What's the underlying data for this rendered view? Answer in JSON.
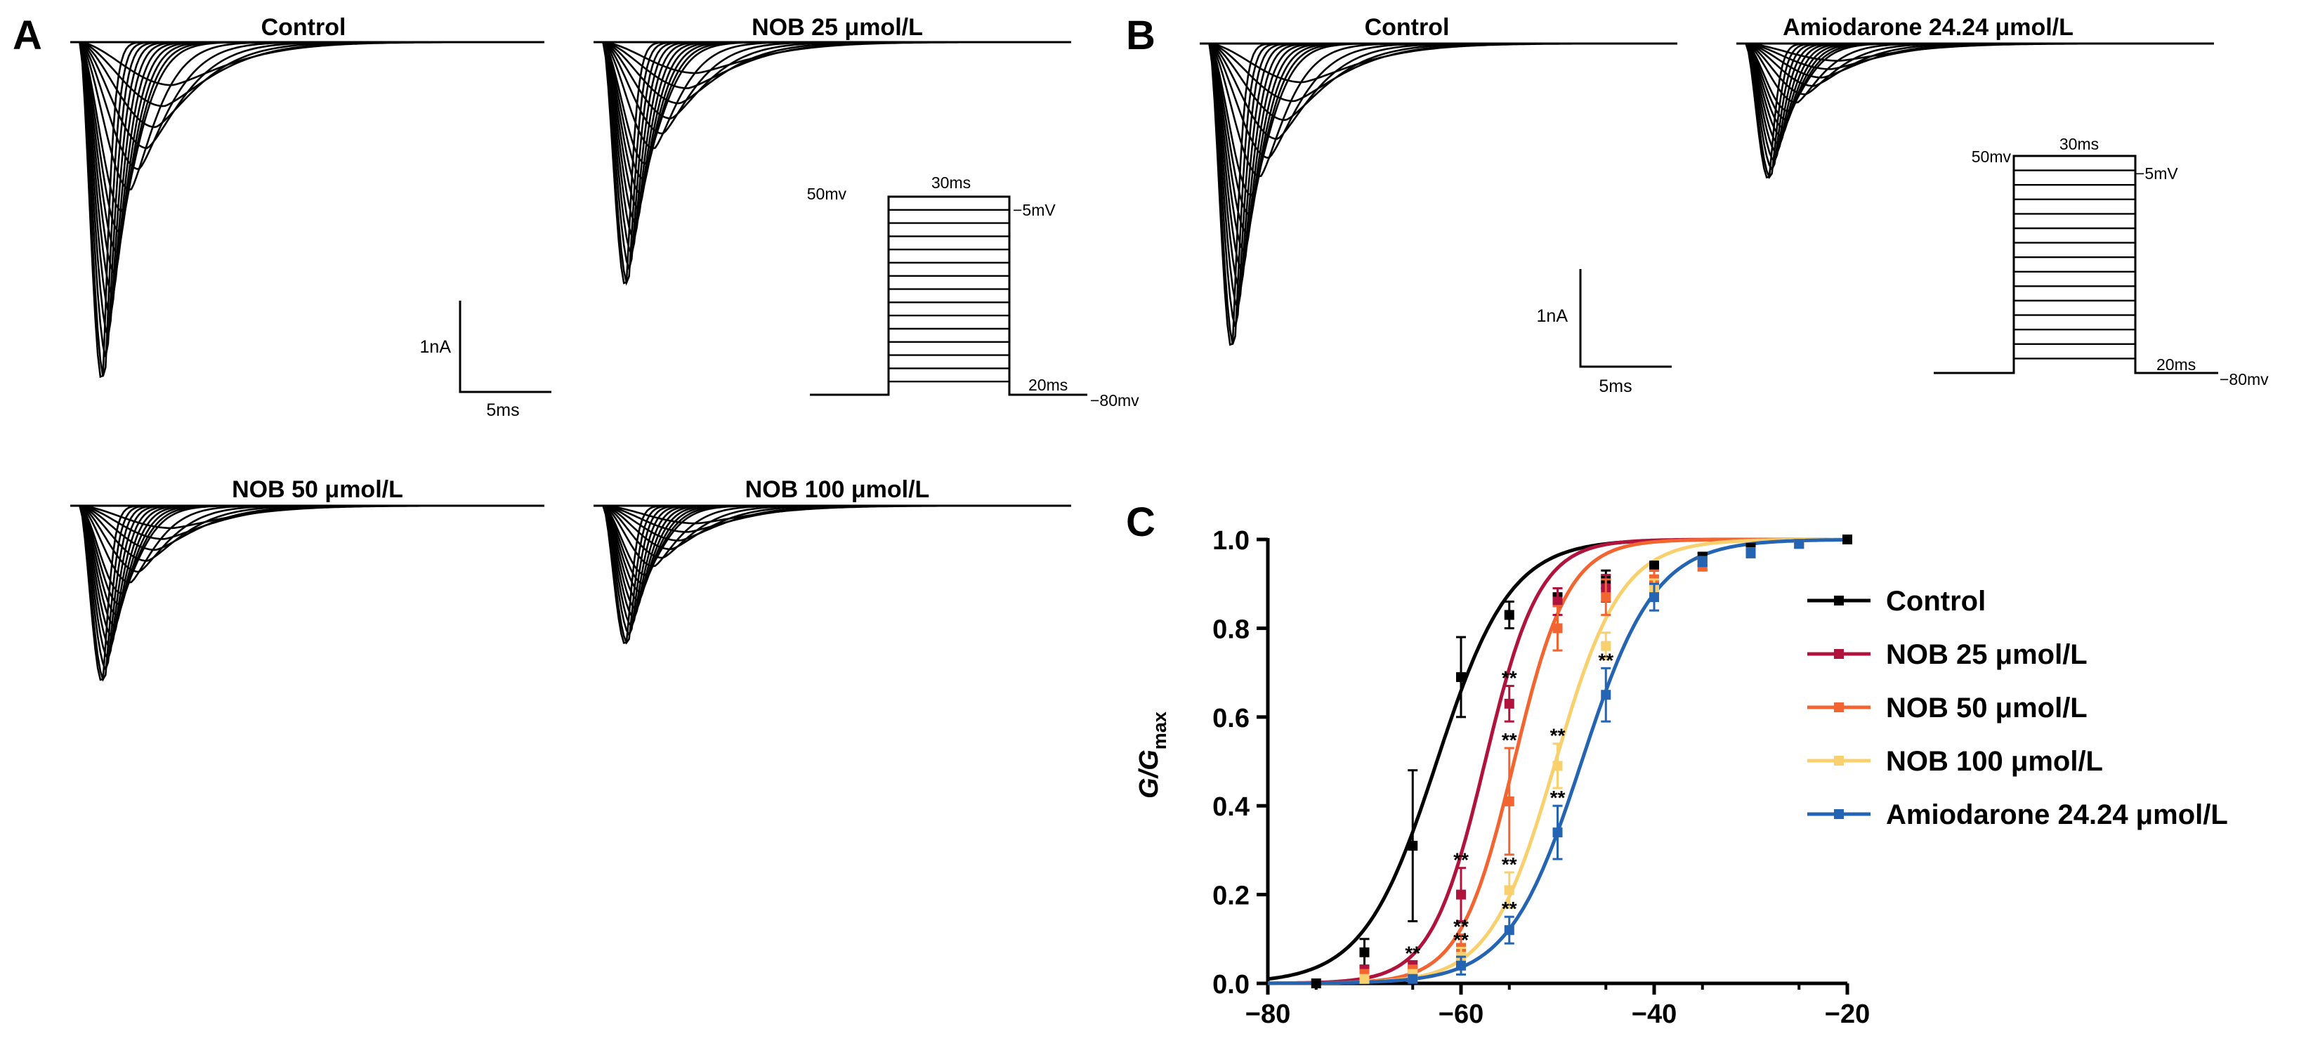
{
  "colors": {
    "trace": "#000000",
    "control": "#000000",
    "nob25": "#B0143C",
    "nob50": "#F26430",
    "nob100": "#F9D06E",
    "amiodarone": "#2464B2"
  },
  "panel_labels": {
    "a": "A",
    "b": "B",
    "c": "C"
  },
  "panel_a": {
    "titles": [
      "Control",
      "NOB 25 μmol/L",
      "NOB 50 μmol/L",
      "NOB 100 μmol/L"
    ],
    "trace_peak_scale": [
      1.0,
      0.72,
      0.52,
      0.41
    ],
    "scale_bar": {
      "current_label": "1nA",
      "time_label": "5ms"
    },
    "protocol": {
      "hold_label": "50mv",
      "step_label": "30ms",
      "top_label": "−5mV",
      "tail_label": "20ms",
      "bottom_label": "−80mv"
    }
  },
  "panel_b": {
    "titles": [
      "Control",
      "Amiodarone 24.24 μmol/L"
    ],
    "trace_peak_scale": [
      0.9,
      0.4
    ],
    "scale_bar": {
      "current_label": "1nA",
      "time_label": "5ms"
    },
    "protocol": {
      "hold_label": "50mv",
      "step_label": "30ms",
      "top_label": "−5mV",
      "tail_label": "20ms",
      "bottom_label": "−80mv"
    }
  },
  "chart_data": {
    "type": "line",
    "title": "",
    "xlabel": "",
    "ylabel": "G/Gmax",
    "ylabel_main": "G/G",
    "ylabel_sub": "max",
    "xlim": [
      -80,
      -20
    ],
    "ylim": [
      0,
      1.0
    ],
    "x_ticks": [
      -80,
      -60,
      -40,
      -20
    ],
    "x_tick_labels": [
      "−80",
      "−60",
      "−40",
      "−20"
    ],
    "y_ticks": [
      0.0,
      0.2,
      0.4,
      0.6,
      0.8,
      1.0
    ],
    "y_tick_labels": [
      "0.0",
      "0.2",
      "0.4",
      "0.6",
      "0.8",
      "1.0"
    ],
    "legend_position": "right",
    "significance_label": "**",
    "series": [
      {
        "name": "Control",
        "color_key": "control",
        "v_half": -62.5,
        "slope": 3.8,
        "points": [
          {
            "x": -75,
            "y": 0.0,
            "err": 0.0
          },
          {
            "x": -70,
            "y": 0.07,
            "err": 0.03
          },
          {
            "x": -65,
            "y": 0.31,
            "err": 0.17
          },
          {
            "x": -60,
            "y": 0.69,
            "err": 0.09
          },
          {
            "x": -55,
            "y": 0.83,
            "err": 0.03
          },
          {
            "x": -50,
            "y": 0.87,
            "err": 0.02
          },
          {
            "x": -45,
            "y": 0.91,
            "err": 0.02
          },
          {
            "x": -40,
            "y": 0.94,
            "err": 0.01
          },
          {
            "x": -35,
            "y": 0.96,
            "err": 0.01
          },
          {
            "x": -30,
            "y": 0.98,
            "err": 0.01
          },
          {
            "x": -25,
            "y": 0.99,
            "err": 0.0
          },
          {
            "x": -20,
            "y": 1.0,
            "err": 0.0
          }
        ]
      },
      {
        "name": "NOB 25 μmol/L",
        "color_key": "nob25",
        "v_half": -57.5,
        "slope": 2.8,
        "points": [
          {
            "x": -70,
            "y": 0.03,
            "err": 0.01,
            "sig": false
          },
          {
            "x": -65,
            "y": 0.04,
            "err": 0.01,
            "sig": true
          },
          {
            "x": -60,
            "y": 0.2,
            "err": 0.06,
            "sig": true
          },
          {
            "x": -55,
            "y": 0.63,
            "err": 0.04,
            "sig": true
          },
          {
            "x": -50,
            "y": 0.86,
            "err": 0.03,
            "sig": false
          },
          {
            "x": -45,
            "y": 0.89,
            "err": 0.03,
            "sig": false
          },
          {
            "x": -40,
            "y": 0.91,
            "err": 0.02,
            "sig": false
          },
          {
            "x": -35,
            "y": 0.95,
            "err": 0.01,
            "sig": false
          },
          {
            "x": -30,
            "y": 0.97,
            "err": 0.01,
            "sig": false
          },
          {
            "x": -25,
            "y": 0.99,
            "err": 0.0,
            "sig": false
          }
        ]
      },
      {
        "name": "NOB 50 μmol/L",
        "color_key": "nob50",
        "v_half": -54.5,
        "slope": 2.8,
        "points": [
          {
            "x": -70,
            "y": 0.02,
            "err": 0.01,
            "sig": false
          },
          {
            "x": -65,
            "y": 0.03,
            "err": 0.01,
            "sig": false
          },
          {
            "x": -60,
            "y": 0.08,
            "err": 0.03,
            "sig": true
          },
          {
            "x": -55,
            "y": 0.41,
            "err": 0.12,
            "sig": true
          },
          {
            "x": -50,
            "y": 0.8,
            "err": 0.05,
            "sig": false
          },
          {
            "x": -45,
            "y": 0.87,
            "err": 0.04,
            "sig": false
          },
          {
            "x": -40,
            "y": 0.91,
            "err": 0.02,
            "sig": false
          },
          {
            "x": -35,
            "y": 0.94,
            "err": 0.01,
            "sig": false
          },
          {
            "x": -30,
            "y": 0.97,
            "err": 0.01,
            "sig": false
          },
          {
            "x": -25,
            "y": 0.99,
            "err": 0.0,
            "sig": false
          }
        ]
      },
      {
        "name": "NOB 100 μmol/L",
        "color_key": "nob100",
        "v_half": -50.2,
        "slope": 3.4,
        "points": [
          {
            "x": -70,
            "y": 0.01,
            "err": 0.0,
            "sig": false
          },
          {
            "x": -65,
            "y": 0.02,
            "err": 0.01,
            "sig": false
          },
          {
            "x": -60,
            "y": 0.06,
            "err": 0.02,
            "sig": true
          },
          {
            "x": -55,
            "y": 0.21,
            "err": 0.04,
            "sig": true
          },
          {
            "x": -50,
            "y": 0.49,
            "err": 0.05,
            "sig": true
          },
          {
            "x": -45,
            "y": 0.76,
            "err": 0.03,
            "sig": false
          },
          {
            "x": -40,
            "y": 0.89,
            "err": 0.02,
            "sig": false
          },
          {
            "x": -35,
            "y": 0.95,
            "err": 0.01,
            "sig": false
          },
          {
            "x": -30,
            "y": 0.97,
            "err": 0.01,
            "sig": false
          },
          {
            "x": -25,
            "y": 0.99,
            "err": 0.0,
            "sig": false
          }
        ]
      },
      {
        "name": "Amiodarone 24.24 μmol/L",
        "color_key": "amiodarone",
        "v_half": -47.5,
        "slope": 3.8,
        "points": [
          {
            "x": -65,
            "y": 0.01,
            "err": 0.0,
            "sig": false
          },
          {
            "x": -60,
            "y": 0.04,
            "err": 0.02,
            "sig": false
          },
          {
            "x": -55,
            "y": 0.12,
            "err": 0.03,
            "sig": true
          },
          {
            "x": -50,
            "y": 0.34,
            "err": 0.06,
            "sig": true
          },
          {
            "x": -45,
            "y": 0.65,
            "err": 0.06,
            "sig": true
          },
          {
            "x": -40,
            "y": 0.87,
            "err": 0.03,
            "sig": false
          },
          {
            "x": -35,
            "y": 0.95,
            "err": 0.01,
            "sig": false
          },
          {
            "x": -30,
            "y": 0.97,
            "err": 0.01,
            "sig": false
          },
          {
            "x": -25,
            "y": 0.99,
            "err": 0.0,
            "sig": false
          }
        ]
      }
    ]
  }
}
